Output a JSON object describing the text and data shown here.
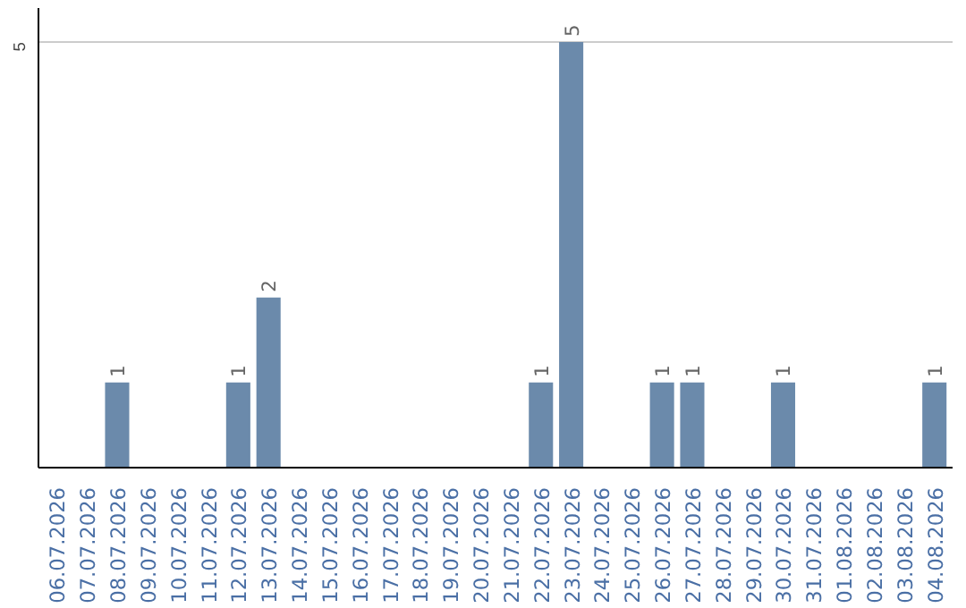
{
  "chart_data": {
    "type": "bar",
    "categories": [
      "06.07.2026",
      "07.07.2026",
      "08.07.2026",
      "09.07.2026",
      "10.07.2026",
      "11.07.2026",
      "12.07.2026",
      "13.07.2026",
      "14.07.2026",
      "15.07.2026",
      "16.07.2026",
      "17.07.2026",
      "18.07.2026",
      "19.07.2026",
      "20.07.2026",
      "21.07.2026",
      "22.07.2026",
      "23.07.2026",
      "24.07.2026",
      "25.07.2026",
      "26.07.2026",
      "27.07.2026",
      "28.07.2026",
      "29.07.2026",
      "30.07.2026",
      "31.07.2026",
      "01.08.2026",
      "02.08.2026",
      "03.08.2026",
      "04.08.2026"
    ],
    "values": [
      0,
      0,
      1,
      0,
      0,
      0,
      1,
      2,
      0,
      0,
      0,
      0,
      0,
      0,
      0,
      0,
      1,
      5,
      0,
      0,
      1,
      1,
      0,
      0,
      1,
      0,
      0,
      0,
      0,
      1
    ],
    "value_labels": [
      null,
      null,
      "1",
      null,
      null,
      null,
      "1",
      "2",
      null,
      null,
      null,
      null,
      null,
      null,
      null,
      null,
      "1",
      "5",
      null,
      null,
      "1",
      "1",
      null,
      null,
      "1",
      null,
      null,
      null,
      null,
      "1"
    ],
    "color": "#6b8aab",
    "ylim": [
      0,
      5.4
    ],
    "yticks": [
      5
    ],
    "grid": "y"
  }
}
